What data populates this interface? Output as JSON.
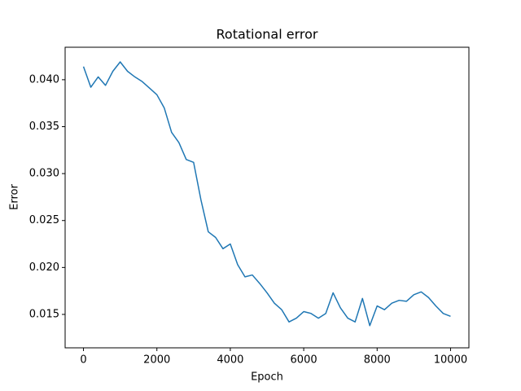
{
  "chart_data": {
    "type": "line",
    "title": "Rotational error",
    "xlabel": "Epoch",
    "ylabel": "Error",
    "x": [
      0,
      200,
      400,
      600,
      800,
      1000,
      1200,
      1400,
      1600,
      1800,
      2000,
      2200,
      2400,
      2600,
      2800,
      3000,
      3200,
      3400,
      3600,
      3800,
      4000,
      4200,
      4400,
      4600,
      4800,
      5000,
      5200,
      5400,
      5600,
      5800,
      6000,
      6200,
      6400,
      6600,
      6800,
      7000,
      7200,
      7400,
      7600,
      7800,
      8000,
      8200,
      8400,
      8600,
      8800,
      9000,
      9200,
      9400,
      9600,
      9800,
      10000
    ],
    "series": [
      {
        "color": "#1f77b4",
        "values": [
          0.0414,
          0.0392,
          0.0403,
          0.0394,
          0.0409,
          0.0419,
          0.0409,
          0.0403,
          0.0398,
          0.0391,
          0.0384,
          0.037,
          0.0344,
          0.0333,
          0.0315,
          0.0312,
          0.0272,
          0.0238,
          0.0232,
          0.022,
          0.0225,
          0.0203,
          0.019,
          0.0192,
          0.0183,
          0.0173,
          0.0162,
          0.0155,
          0.0142,
          0.0146,
          0.0153,
          0.0151,
          0.0146,
          0.0151,
          0.0173,
          0.0157,
          0.0146,
          0.0142,
          0.0167,
          0.0138,
          0.0159,
          0.0155,
          0.0162,
          0.0165,
          0.0164,
          0.0171,
          0.0174,
          0.0168,
          0.0159,
          0.0151,
          0.0148
        ]
      }
    ],
    "xlim": [
      -500,
      10500
    ],
    "ylim": [
      0.01144,
      0.04346
    ],
    "xticks": [
      0,
      2000,
      4000,
      6000,
      8000,
      10000
    ],
    "yticks": [
      0.015,
      {
        "value": 0.02,
        "label": "0.020"
      },
      0.025,
      {
        "value": 0.03,
        "label": "0.030"
      },
      0.035,
      {
        "value": 0.04,
        "label": "0.040"
      }
    ],
    "grid": false
  }
}
